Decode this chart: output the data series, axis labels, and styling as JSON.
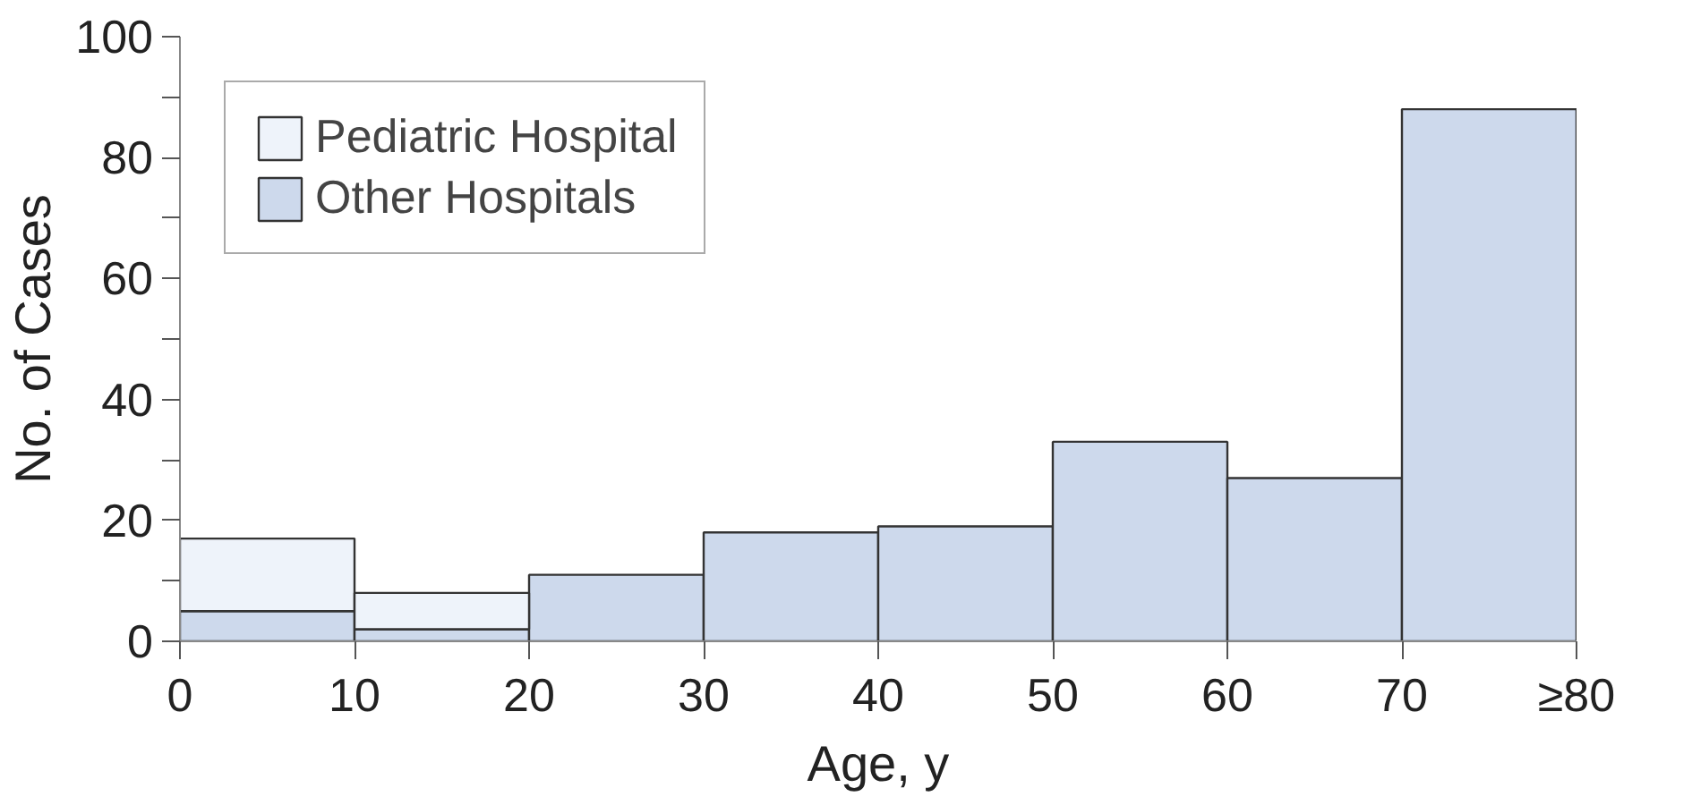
{
  "chart_data": {
    "type": "bar",
    "xlabel": "Age, y",
    "ylabel": "No. of Cases",
    "x": [
      5,
      15,
      25,
      35,
      45,
      55,
      65,
      75
    ],
    "stacked": true,
    "series": [
      {
        "name": "Other Hospitals",
        "color": "#cdd9ec",
        "values": [
          5,
          2,
          11,
          18,
          19,
          33,
          27,
          88
        ]
      },
      {
        "name": "Pediatric Hospital",
        "color": "#eef3fa",
        "values": [
          12,
          6,
          null,
          null,
          null,
          null,
          null,
          null
        ]
      }
    ],
    "xlim": [
      0,
      80
    ],
    "xticks": [
      0,
      10,
      20,
      30,
      40,
      50,
      60,
      70,
      {
        "value": 80,
        "label": "≥80"
      }
    ],
    "ylim": [
      0,
      100
    ],
    "yticks": [
      0,
      {
        "value": 10,
        "label": null
      },
      20,
      {
        "value": 30,
        "label": null
      },
      40,
      {
        "value": 50,
        "label": null
      },
      60,
      {
        "value": 70,
        "label": null
      },
      80,
      {
        "value": 90,
        "label": null
      },
      100
    ],
    "grid": false,
    "legend": "top left"
  }
}
